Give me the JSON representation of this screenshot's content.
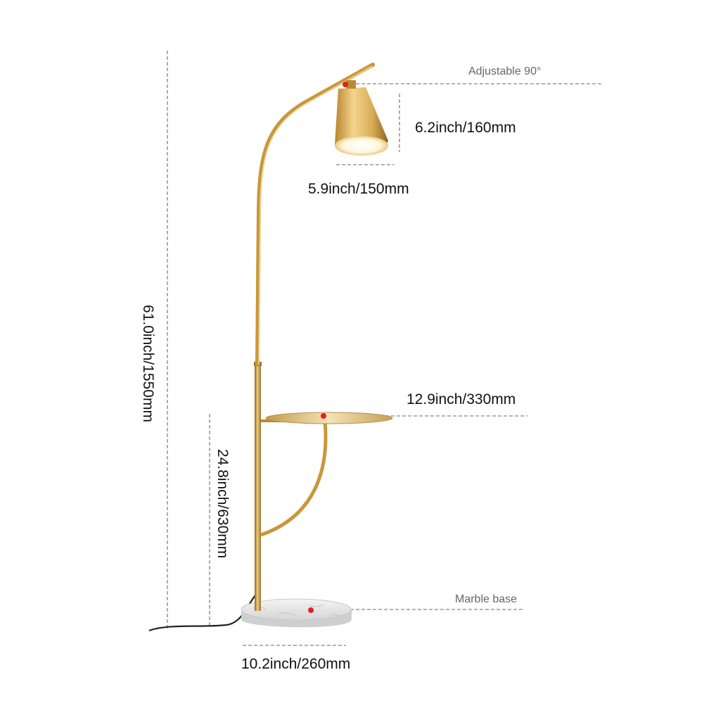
{
  "labels": {
    "adjustable": "Adjustable 90°",
    "shade_height": "6.2inch/160mm",
    "shade_width": "5.9inch/150mm",
    "total_height": "61.0inch/1550mm",
    "table_width": "12.9inch/330mm",
    "table_height": "24.8inch/630mm",
    "base_label": "Marble base",
    "base_width": "10.2inch/260mm"
  },
  "colors": {
    "brass_light": "#f2d28a",
    "brass": "#c9973c",
    "brass_dark": "#8a6420",
    "dim_line": "#9a9a9a",
    "marker": "#e02020",
    "marble": "#e8e8e8",
    "cord": "#222222"
  }
}
